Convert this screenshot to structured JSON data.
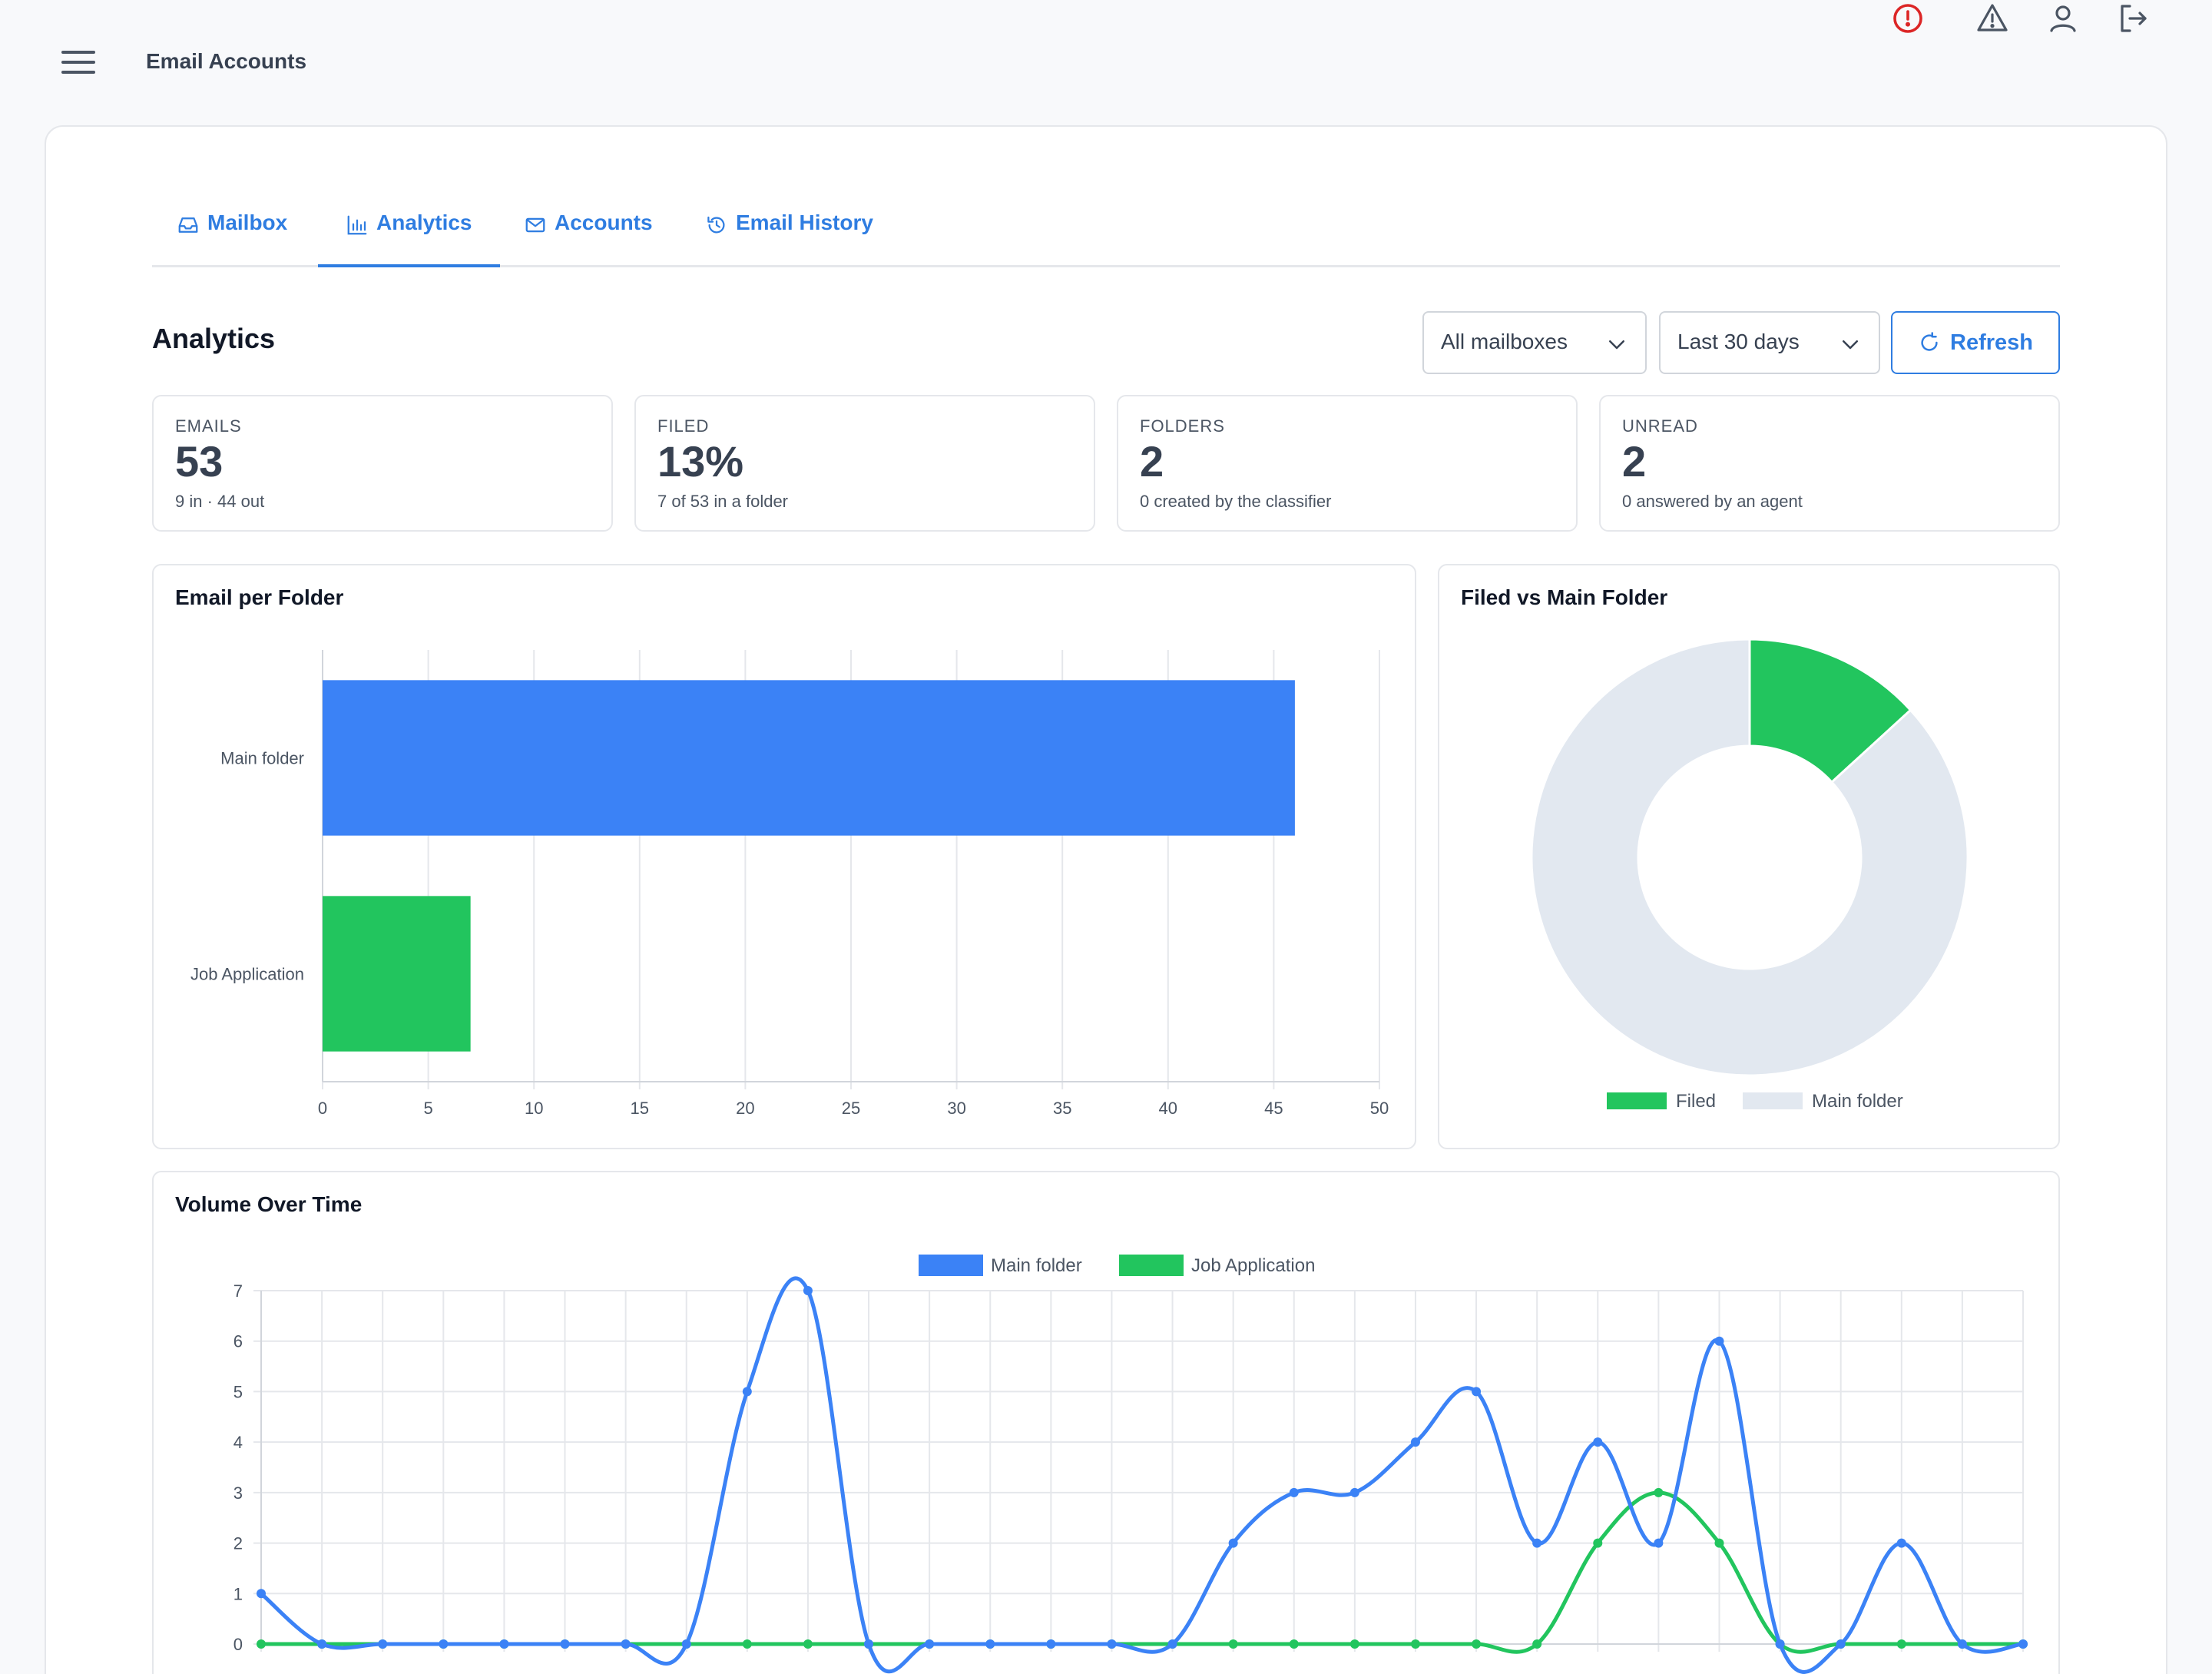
{
  "header": {
    "title": "Email Accounts",
    "icons": [
      "menu-icon",
      "alert-circle-icon",
      "warning-triangle-icon",
      "user-icon",
      "logout-icon"
    ],
    "alert_color": "#dc2626"
  },
  "tabs": [
    {
      "label": "Mailbox",
      "icon": "inbox-icon",
      "active": false
    },
    {
      "label": "Analytics",
      "icon": "bar-chart-icon",
      "active": true
    },
    {
      "label": "Accounts",
      "icon": "envelope-icon",
      "active": false
    },
    {
      "label": "Email History",
      "icon": "history-icon",
      "active": false
    }
  ],
  "analytics": {
    "title": "Analytics",
    "mailbox_select": "All mailboxes",
    "range_select": "Last 30 days",
    "refresh_label": "Refresh"
  },
  "stats": [
    {
      "label": "EMAILS",
      "value": "53",
      "sub": "9 in · 44 out"
    },
    {
      "label": "FILED",
      "value": "13%",
      "sub": "7 of 53 in a folder"
    },
    {
      "label": "FOLDERS",
      "value": "2",
      "sub": "0 created by the classifier"
    },
    {
      "label": "UNREAD",
      "value": "2",
      "sub": "0 answered by an agent"
    }
  ],
  "colors": {
    "accent": "#2f7de1",
    "blue": "#3b82f6",
    "green": "#22c55e",
    "grey": "#e2e8f0"
  },
  "chart_data": [
    {
      "type": "bar",
      "orientation": "horizontal",
      "title": "Email per Folder",
      "categories": [
        "Main folder",
        "Job Application"
      ],
      "values": [
        46,
        7
      ],
      "colors": [
        "#3b82f6",
        "#22c55e"
      ],
      "xlim": [
        0,
        50
      ],
      "xticks": [
        0,
        5,
        10,
        15,
        20,
        25,
        30,
        35,
        40,
        45,
        50
      ]
    },
    {
      "type": "pie",
      "donut": true,
      "title": "Filed vs Main Folder",
      "labels": [
        "Filed",
        "Main folder"
      ],
      "values": [
        7,
        46
      ],
      "colors": [
        "#22c55e",
        "#e2e8f0"
      ],
      "legend": "bottom"
    },
    {
      "type": "line",
      "title": "Volume Over Time",
      "legend": "top",
      "ylim": [
        0,
        7
      ],
      "yticks": [
        0,
        1,
        2,
        3,
        4,
        5,
        6,
        7
      ],
      "series": [
        {
          "name": "Main folder",
          "color": "#3b82f6",
          "values": [
            1,
            0,
            0,
            0,
            0,
            0,
            0,
            0,
            5,
            7,
            0,
            0,
            0,
            0,
            0,
            0,
            2,
            3,
            3,
            4,
            5,
            2,
            4,
            2,
            6,
            0,
            0,
            2,
            0,
            0
          ]
        },
        {
          "name": "Job Application",
          "color": "#22c55e",
          "values": [
            0,
            0,
            0,
            0,
            0,
            0,
            0,
            0,
            0,
            0,
            0,
            0,
            0,
            0,
            0,
            0,
            0,
            0,
            0,
            0,
            0,
            0,
            2,
            3,
            2,
            0,
            0,
            0,
            0,
            0
          ]
        }
      ]
    }
  ]
}
